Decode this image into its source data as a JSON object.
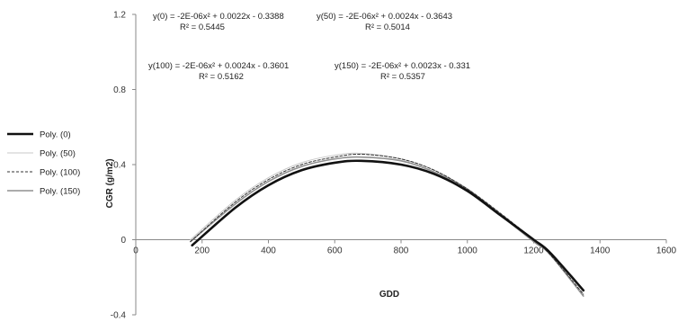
{
  "chart_data": {
    "type": "line",
    "xlabel": "GDD",
    "ylabel": "CGR (g/m2)",
    "xlim": [
      0,
      1600
    ],
    "ylim": [
      -0.4,
      1.2
    ],
    "x_ticks": [
      "0",
      "200",
      "400",
      "600",
      "800",
      "1000",
      "1200",
      "1400",
      "1600"
    ],
    "y_ticks": [
      "-0.4",
      "0",
      "0.4",
      "0.8",
      "1.2"
    ],
    "grid": false,
    "legend_position": "left",
    "series": [
      {
        "name": "Poly. (0)",
        "color": "#111111",
        "style": "solid-thick",
        "x": [
          170,
          300,
          400,
          500,
          600,
          680,
          800,
          900,
          1000,
          1100,
          1200,
          1250,
          1350
        ],
        "y": [
          -0.03,
          0.17,
          0.29,
          0.37,
          0.41,
          0.42,
          0.4,
          0.35,
          0.26,
          0.13,
          0.0,
          -0.07,
          -0.27
        ]
      },
      {
        "name": "Poly. (50)",
        "color": "#c8c8c8",
        "style": "solid-thin",
        "x": [
          165,
          300,
          400,
          500,
          600,
          680,
          800,
          900,
          1000,
          1100,
          1200,
          1250,
          1350
        ],
        "y": [
          0.0,
          0.21,
          0.33,
          0.41,
          0.45,
          0.46,
          0.43,
          0.37,
          0.27,
          0.14,
          -0.01,
          -0.08,
          -0.3
        ]
      },
      {
        "name": "Poly. (100)",
        "color": "#333333",
        "style": "dashed",
        "x": [
          165,
          300,
          400,
          500,
          600,
          680,
          800,
          900,
          1000,
          1100,
          1200,
          1250,
          1350
        ],
        "y": [
          -0.01,
          0.2,
          0.32,
          0.4,
          0.44,
          0.455,
          0.43,
          0.37,
          0.27,
          0.14,
          0.0,
          -0.08,
          -0.29
        ]
      },
      {
        "name": "Poly. (150)",
        "color": "#909090",
        "style": "solid-medium",
        "x": [
          165,
          300,
          400,
          500,
          600,
          680,
          800,
          900,
          1000,
          1100,
          1200,
          1250,
          1350
        ],
        "y": [
          -0.01,
          0.19,
          0.31,
          0.39,
          0.43,
          0.44,
          0.42,
          0.36,
          0.27,
          0.13,
          -0.01,
          -0.08,
          -0.3
        ]
      }
    ],
    "annotations": [
      {
        "equation": "y(0) = -2E-06x² + 0.0022x - 0.3388",
        "r2": "R² = 0.5445"
      },
      {
        "equation": "y(50) = -2E-06x² + 0.0024x - 0.3643",
        "r2": "R² = 0.5014"
      },
      {
        "equation": "y(100) = -2E-06x² + 0.0024x - 0.3601",
        "r2": "R² = 0.5162"
      },
      {
        "equation": "y(150) = -2E-06x² + 0.0023x - 0.331",
        "r2": "R² = 0.5357"
      }
    ]
  }
}
